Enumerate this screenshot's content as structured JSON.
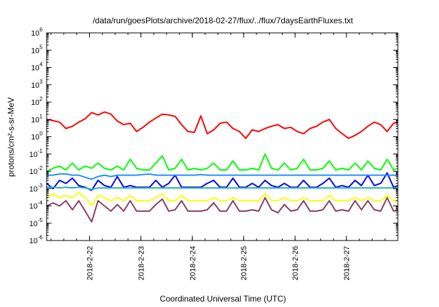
{
  "chart_data": {
    "type": "line",
    "title": "/data/run/goesPlots/archive/2018-02-27/flux/../flux/7daysEarthFluxes.txt",
    "xlabel": "Coordinated Universal Time (UTC)",
    "ylabel": "protons/cm²-s-sr-MeV",
    "yscale": "log",
    "ylim": [
      1e-06,
      1000000.0
    ],
    "xlim": [
      "2018-02-21T04:00",
      "2018-02-28T00:00"
    ],
    "xticks": [
      "2018-2-22",
      "2018-2-23",
      "2018-2-24",
      "2018-2-25",
      "2018-2-26",
      "2018-2-27"
    ],
    "yticks": [
      {
        "base": "10",
        "exp": "-6"
      },
      {
        "base": "10",
        "exp": "-5"
      },
      {
        "base": "10",
        "exp": "-4"
      },
      {
        "base": "10",
        "exp": "-3"
      },
      {
        "base": "10",
        "exp": "-2"
      },
      {
        "base": "10",
        "exp": "-1"
      },
      {
        "base": "10",
        "exp": "0"
      },
      {
        "base": "10",
        "exp": "1"
      },
      {
        "base": "10",
        "exp": "2"
      },
      {
        "base": "10",
        "exp": "3"
      },
      {
        "base": "10",
        "exp": "4"
      },
      {
        "base": "10",
        "exp": "5"
      },
      {
        "base": "10",
        "exp": "6"
      }
    ],
    "grid": false,
    "legend": "none",
    "x": [
      "2018-02-21T04:00",
      "2018-02-21T07:00",
      "2018-02-21T10:00",
      "2018-02-21T13:00",
      "2018-02-21T16:00",
      "2018-02-21T19:00",
      "2018-02-21T22:00",
      "2018-02-22T01:00",
      "2018-02-22T04:00",
      "2018-02-22T07:00",
      "2018-02-22T10:00",
      "2018-02-22T13:00",
      "2018-02-22T16:00",
      "2018-02-22T19:00",
      "2018-02-22T22:00",
      "2018-02-23T01:00",
      "2018-02-23T04:00",
      "2018-02-23T07:00",
      "2018-02-23T10:00",
      "2018-02-23T13:00",
      "2018-02-23T16:00",
      "2018-02-23T19:00",
      "2018-02-23T22:00",
      "2018-02-24T01:00",
      "2018-02-24T04:00",
      "2018-02-24T07:00",
      "2018-02-24T10:00",
      "2018-02-24T13:00",
      "2018-02-24T16:00",
      "2018-02-24T19:00",
      "2018-02-24T22:00",
      "2018-02-25T01:00",
      "2018-02-25T04:00",
      "2018-02-25T07:00",
      "2018-02-25T10:00",
      "2018-02-25T13:00",
      "2018-02-25T16:00",
      "2018-02-25T19:00",
      "2018-02-25T22:00",
      "2018-02-26T01:00",
      "2018-02-26T04:00",
      "2018-02-26T07:00",
      "2018-02-26T10:00",
      "2018-02-26T13:00",
      "2018-02-26T16:00",
      "2018-02-26T19:00",
      "2018-02-26T22:00",
      "2018-02-27T01:00",
      "2018-02-27T04:00",
      "2018-02-27T07:00",
      "2018-02-27T10:00",
      "2018-02-27T13:00",
      "2018-02-27T16:00",
      "2018-02-27T19:00",
      "2018-02-27T22:00",
      "2018-02-28T00:00"
    ],
    "series": [
      {
        "color": "#ff0000",
        "values": [
          10,
          8.5,
          7,
          3,
          4,
          7,
          11,
          25,
          18,
          27,
          20,
          8,
          5,
          6,
          2,
          3.5,
          7,
          12,
          20,
          18,
          15,
          5,
          2,
          1.8,
          16,
          1.5,
          2.5,
          6,
          7,
          3,
          2,
          0.8,
          2.5,
          2,
          3,
          4,
          5,
          3,
          3.5,
          2,
          1.5,
          3,
          4,
          7,
          10,
          3,
          1.5,
          0.8,
          1.2,
          2,
          4,
          7,
          5,
          2,
          6,
          7
        ]
      },
      {
        "color": "#00ff00",
        "values": [
          0.01,
          0.015,
          0.02,
          0.012,
          0.03,
          0.012,
          0.02,
          0.015,
          0.03,
          0.015,
          0.012,
          0.02,
          0.012,
          0.05,
          0.015,
          0.012,
          0.012,
          0.03,
          0.08,
          0.012,
          0.015,
          0.05,
          0.012,
          0.015,
          0.012,
          0.015,
          0.03,
          0.012,
          0.012,
          0.04,
          0.012,
          0.012,
          0.015,
          0.012,
          0.1,
          0.015,
          0.012,
          0.03,
          0.012,
          0.015,
          0.05,
          0.012,
          0.012,
          0.015,
          0.04,
          0.012,
          0.015,
          0.012,
          0.03,
          0.012,
          0.04,
          0.015,
          0.012,
          0.05,
          0.012,
          0.015
        ]
      },
      {
        "color": "#0000ff",
        "values": [
          0.002,
          0.001,
          0.003,
          0.002,
          0.004,
          0.0015,
          0.0012,
          0.0008,
          0.003,
          0.0015,
          0.0012,
          0.005,
          0.0012,
          0.0015,
          0.0012,
          0.0012,
          0.0012,
          0.003,
          0.0012,
          0.002,
          0.006,
          0.0012,
          0.0012,
          0.0012,
          0.0012,
          0.002,
          0.003,
          0.0012,
          0.0012,
          0.004,
          0.0012,
          0.0012,
          0.002,
          0.0012,
          0.003,
          0.0015,
          0.0012,
          0.002,
          0.0012,
          0.0012,
          0.003,
          0.0012,
          0.0012,
          0.002,
          0.004,
          0.0012,
          0.0015,
          0.0012,
          0.003,
          0.0015,
          0.006,
          0.0015,
          0.002,
          0.008,
          0.0012,
          0.0015
        ]
      },
      {
        "color": "#1e90ff",
        "values": [
          0.006,
          0.006,
          0.007,
          0.007,
          0.006,
          0.006,
          0.0045,
          0.0035,
          0.005,
          0.006,
          0.005,
          0.006,
          0.006,
          0.006,
          0.006,
          0.0065,
          0.007,
          0.006,
          0.006,
          0.006,
          0.006,
          0.006,
          0.006,
          0.006,
          0.0065,
          0.006,
          0.006,
          0.006,
          0.006,
          0.006,
          0.006,
          0.006,
          0.006,
          0.006,
          0.006,
          0.006,
          0.006,
          0.006,
          0.006,
          0.006,
          0.006,
          0.006,
          0.006,
          0.006,
          0.006,
          0.006,
          0.006,
          0.006,
          0.006,
          0.006,
          0.006,
          0.006,
          0.006,
          0.006,
          0.006,
          0.006
        ]
      },
      {
        "color": "#20b2aa",
        "values": [
          0.0012,
          0.0012,
          0.0011,
          0.0012,
          0.0011,
          0.0012,
          0.0011,
          0.0009,
          0.0011,
          0.0011,
          0.0011,
          0.0011,
          0.0011,
          0.0011,
          0.0011,
          0.0011,
          0.0011,
          0.0011,
          0.0011,
          0.0011,
          0.0011,
          0.0011,
          0.0011,
          0.0011,
          0.0011,
          0.0011,
          0.0011,
          0.0011,
          0.0011,
          0.0011,
          0.0011,
          0.0011,
          0.0011,
          0.0011,
          0.0011,
          0.0011,
          0.0011,
          0.0011,
          0.0011,
          0.0011,
          0.0011,
          0.0011,
          0.0011,
          0.0011,
          0.0011,
          0.0011,
          0.0011,
          0.0011,
          0.0011,
          0.0011,
          0.0011,
          0.0011,
          0.0011,
          0.0011,
          0.0011,
          0.0011
        ]
      },
      {
        "color": "#ffff00",
        "values": [
          0.0003,
          0.0005,
          0.0003,
          0.0004,
          0.0003,
          0.0006,
          0.0003,
          0.0001,
          0.0004,
          0.0003,
          0.0002,
          0.0003,
          0.0002,
          0.0004,
          0.0002,
          0.0002,
          0.0002,
          0.0003,
          0.0005,
          0.0002,
          0.0002,
          0.0004,
          0.0002,
          0.0002,
          0.0002,
          0.0002,
          0.0003,
          0.0002,
          0.0002,
          0.0003,
          0.0002,
          0.0002,
          0.0002,
          0.0002,
          0.0005,
          0.0002,
          0.0002,
          0.0003,
          0.0002,
          0.0002,
          0.0003,
          0.0002,
          0.0002,
          0.0002,
          0.0004,
          0.0002,
          0.0002,
          0.0002,
          0.0003,
          0.0002,
          0.0003,
          0.0002,
          0.0002,
          0.0004,
          0.0002,
          0.0002
        ]
      },
      {
        "color": "#8b3a62",
        "values": [
          0.0001,
          0.00015,
          0.0001,
          0.0002,
          6e-05,
          0.0002,
          5e-05,
          1.2e-05,
          0.0002,
          0.0001,
          5e-05,
          0.00012,
          5e-05,
          0.0002,
          5e-05,
          5e-05,
          5e-05,
          0.00012,
          0.00025,
          5e-05,
          6e-05,
          0.0002,
          5e-05,
          5e-05,
          5e-05,
          6e-05,
          0.00015,
          5e-05,
          5e-05,
          0.0002,
          5e-05,
          5e-05,
          6e-05,
          5e-05,
          0.0003,
          6e-05,
          4e-05,
          0.00012,
          5e-05,
          6e-05,
          0.0002,
          5e-05,
          5e-05,
          6e-05,
          0.0002,
          5e-05,
          6e-05,
          5e-05,
          0.0002,
          6e-05,
          0.0002,
          6e-05,
          5e-05,
          0.0003,
          5e-05,
          6e-05
        ]
      }
    ]
  }
}
